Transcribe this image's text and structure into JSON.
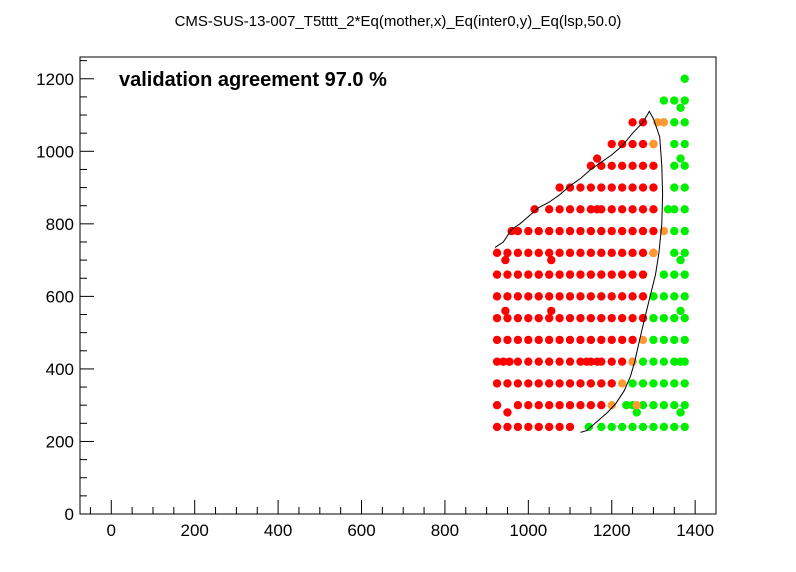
{
  "chart_data": {
    "type": "scatter",
    "title": "CMS-SUS-13-007_T5tttt_2*Eq(mother,x)_Eq(inter0,y)_Eq(lsp,50.0)",
    "annotation": "validation agreement 97.0 %",
    "xlabel": "",
    "ylabel": "",
    "xlim": [
      -75,
      1450
    ],
    "ylim": [
      0,
      1260
    ],
    "x_ticks": [
      0,
      200,
      400,
      600,
      800,
      1000,
      1200,
      1400
    ],
    "y_ticks": [
      0,
      200,
      400,
      600,
      800,
      1000,
      1200
    ],
    "grid": false,
    "legend": "none",
    "colors": {
      "excluded": "#ff0000",
      "allowed": "#00ee00",
      "disagreement": "#ff9933",
      "contour": "#000000"
    },
    "series": [
      {
        "color_key": "excluded",
        "points": [
          [
            925,
            240
          ],
          [
            950,
            240
          ],
          [
            975,
            240
          ],
          [
            1000,
            240
          ],
          [
            1025,
            240
          ],
          [
            1050,
            240
          ],
          [
            1075,
            240
          ],
          [
            1100,
            240
          ],
          [
            925,
            300
          ],
          [
            950,
            280
          ],
          [
            975,
            300
          ],
          [
            1000,
            300
          ],
          [
            1025,
            300
          ],
          [
            1050,
            300
          ],
          [
            1075,
            300
          ],
          [
            1100,
            300
          ],
          [
            1125,
            300
          ],
          [
            1150,
            300
          ],
          [
            1175,
            300
          ],
          [
            925,
            360
          ],
          [
            950,
            360
          ],
          [
            975,
            360
          ],
          [
            1000,
            360
          ],
          [
            1025,
            360
          ],
          [
            1050,
            360
          ],
          [
            1075,
            360
          ],
          [
            1100,
            360
          ],
          [
            1125,
            360
          ],
          [
            1150,
            360
          ],
          [
            1175,
            360
          ],
          [
            1200,
            360
          ],
          [
            925,
            420
          ],
          [
            940,
            420
          ],
          [
            955,
            420
          ],
          [
            975,
            420
          ],
          [
            1000,
            420
          ],
          [
            1025,
            420
          ],
          [
            1050,
            420
          ],
          [
            1075,
            420
          ],
          [
            1100,
            420
          ],
          [
            1125,
            420
          ],
          [
            1140,
            420
          ],
          [
            1150,
            420
          ],
          [
            1165,
            420
          ],
          [
            1175,
            420
          ],
          [
            1200,
            420
          ],
          [
            1225,
            420
          ],
          [
            1250,
            420
          ],
          [
            925,
            480
          ],
          [
            950,
            480
          ],
          [
            975,
            480
          ],
          [
            1000,
            480
          ],
          [
            1025,
            480
          ],
          [
            1050,
            480
          ],
          [
            1075,
            480
          ],
          [
            1100,
            480
          ],
          [
            1125,
            480
          ],
          [
            1150,
            480
          ],
          [
            1175,
            480
          ],
          [
            1200,
            480
          ],
          [
            1225,
            480
          ],
          [
            1250,
            480
          ],
          [
            925,
            540
          ],
          [
            945,
            560
          ],
          [
            950,
            540
          ],
          [
            975,
            540
          ],
          [
            1000,
            540
          ],
          [
            1025,
            540
          ],
          [
            1050,
            540
          ],
          [
            1055,
            560
          ],
          [
            1075,
            540
          ],
          [
            1100,
            540
          ],
          [
            1125,
            540
          ],
          [
            1150,
            540
          ],
          [
            1175,
            540
          ],
          [
            1200,
            540
          ],
          [
            1225,
            540
          ],
          [
            1250,
            540
          ],
          [
            1275,
            540
          ],
          [
            925,
            600
          ],
          [
            950,
            600
          ],
          [
            975,
            600
          ],
          [
            1000,
            600
          ],
          [
            1025,
            600
          ],
          [
            1050,
            600
          ],
          [
            1075,
            600
          ],
          [
            1100,
            600
          ],
          [
            1125,
            600
          ],
          [
            1150,
            600
          ],
          [
            1175,
            600
          ],
          [
            1200,
            600
          ],
          [
            1225,
            600
          ],
          [
            1250,
            600
          ],
          [
            1275,
            600
          ],
          [
            925,
            660
          ],
          [
            950,
            660
          ],
          [
            975,
            660
          ],
          [
            1000,
            660
          ],
          [
            1025,
            660
          ],
          [
            1050,
            660
          ],
          [
            1075,
            660
          ],
          [
            1100,
            660
          ],
          [
            1125,
            660
          ],
          [
            1150,
            660
          ],
          [
            1175,
            660
          ],
          [
            1200,
            660
          ],
          [
            1225,
            660
          ],
          [
            1250,
            660
          ],
          [
            1275,
            660
          ],
          [
            925,
            720
          ],
          [
            945,
            700
          ],
          [
            950,
            720
          ],
          [
            975,
            720
          ],
          [
            1000,
            720
          ],
          [
            1025,
            720
          ],
          [
            1050,
            720
          ],
          [
            1055,
            700
          ],
          [
            1075,
            720
          ],
          [
            1100,
            720
          ],
          [
            1125,
            720
          ],
          [
            1150,
            720
          ],
          [
            1175,
            720
          ],
          [
            1200,
            720
          ],
          [
            1225,
            720
          ],
          [
            1250,
            720
          ],
          [
            1275,
            720
          ],
          [
            1300,
            720
          ],
          [
            960,
            780
          ],
          [
            975,
            780
          ],
          [
            1000,
            780
          ],
          [
            1025,
            780
          ],
          [
            1050,
            780
          ],
          [
            1075,
            780
          ],
          [
            1100,
            780
          ],
          [
            1125,
            780
          ],
          [
            1150,
            780
          ],
          [
            1175,
            780
          ],
          [
            1200,
            780
          ],
          [
            1225,
            780
          ],
          [
            1250,
            780
          ],
          [
            1275,
            780
          ],
          [
            1300,
            780
          ],
          [
            1015,
            840
          ],
          [
            1050,
            840
          ],
          [
            1075,
            840
          ],
          [
            1100,
            840
          ],
          [
            1125,
            840
          ],
          [
            1150,
            840
          ],
          [
            1165,
            840
          ],
          [
            1175,
            840
          ],
          [
            1200,
            840
          ],
          [
            1225,
            840
          ],
          [
            1250,
            840
          ],
          [
            1275,
            840
          ],
          [
            1300,
            840
          ],
          [
            1075,
            900
          ],
          [
            1100,
            900
          ],
          [
            1125,
            900
          ],
          [
            1150,
            900
          ],
          [
            1175,
            900
          ],
          [
            1200,
            900
          ],
          [
            1225,
            900
          ],
          [
            1250,
            900
          ],
          [
            1275,
            900
          ],
          [
            1300,
            900
          ],
          [
            1150,
            960
          ],
          [
            1175,
            960
          ],
          [
            1200,
            960
          ],
          [
            1225,
            960
          ],
          [
            1250,
            960
          ],
          [
            1275,
            960
          ],
          [
            1300,
            960
          ],
          [
            1165,
            980
          ],
          [
            1200,
            1020
          ],
          [
            1225,
            1020
          ],
          [
            1250,
            1020
          ],
          [
            1275,
            1020
          ],
          [
            1300,
            1020
          ],
          [
            1250,
            1080
          ],
          [
            1275,
            1080
          ]
        ]
      },
      {
        "color_key": "allowed",
        "points": [
          [
            1145,
            240
          ],
          [
            1175,
            240
          ],
          [
            1200,
            240
          ],
          [
            1225,
            240
          ],
          [
            1250,
            240
          ],
          [
            1275,
            240
          ],
          [
            1300,
            240
          ],
          [
            1325,
            240
          ],
          [
            1350,
            240
          ],
          [
            1375,
            240
          ],
          [
            1235,
            300
          ],
          [
            1250,
            300
          ],
          [
            1260,
            280
          ],
          [
            1275,
            300
          ],
          [
            1300,
            300
          ],
          [
            1325,
            300
          ],
          [
            1350,
            300
          ],
          [
            1365,
            280
          ],
          [
            1375,
            300
          ],
          [
            1250,
            360
          ],
          [
            1275,
            360
          ],
          [
            1300,
            360
          ],
          [
            1325,
            360
          ],
          [
            1350,
            360
          ],
          [
            1375,
            360
          ],
          [
            1275,
            420
          ],
          [
            1300,
            420
          ],
          [
            1325,
            420
          ],
          [
            1350,
            420
          ],
          [
            1365,
            420
          ],
          [
            1375,
            420
          ],
          [
            1300,
            480
          ],
          [
            1325,
            480
          ],
          [
            1350,
            480
          ],
          [
            1375,
            480
          ],
          [
            1300,
            540
          ],
          [
            1325,
            540
          ],
          [
            1350,
            540
          ],
          [
            1365,
            560
          ],
          [
            1375,
            540
          ],
          [
            1300,
            600
          ],
          [
            1325,
            600
          ],
          [
            1350,
            600
          ],
          [
            1375,
            600
          ],
          [
            1325,
            660
          ],
          [
            1350,
            660
          ],
          [
            1375,
            660
          ],
          [
            1350,
            720
          ],
          [
            1365,
            700
          ],
          [
            1375,
            720
          ],
          [
            1350,
            780
          ],
          [
            1375,
            780
          ],
          [
            1335,
            840
          ],
          [
            1350,
            840
          ],
          [
            1375,
            840
          ],
          [
            1350,
            900
          ],
          [
            1375,
            900
          ],
          [
            1350,
            960
          ],
          [
            1375,
            960
          ],
          [
            1350,
            1020
          ],
          [
            1375,
            1020
          ],
          [
            1325,
            1080
          ],
          [
            1350,
            1080
          ],
          [
            1375,
            1080
          ],
          [
            1365,
            1120
          ],
          [
            1325,
            1140
          ],
          [
            1350,
            1140
          ],
          [
            1375,
            1140
          ],
          [
            1375,
            1200
          ],
          [
            1365,
            980
          ]
        ]
      },
      {
        "color_key": "disagreement",
        "points": [
          [
            1200,
            300
          ],
          [
            1225,
            360
          ],
          [
            1260,
            300
          ],
          [
            1275,
            480
          ],
          [
            1250,
            420
          ],
          [
            1300,
            720
          ],
          [
            1325,
            780
          ],
          [
            1325,
            1080
          ],
          [
            1300,
            1020
          ],
          [
            1310,
            1080
          ]
        ]
      }
    ],
    "contour": [
      [
        920,
        735
      ],
      [
        940,
        750
      ],
      [
        960,
        785
      ],
      [
        980,
        800
      ],
      [
        1000,
        820
      ],
      [
        1025,
        845
      ],
      [
        1050,
        860
      ],
      [
        1075,
        880
      ],
      [
        1100,
        905
      ],
      [
        1125,
        925
      ],
      [
        1150,
        950
      ],
      [
        1175,
        970
      ],
      [
        1200,
        990
      ],
      [
        1225,
        1015
      ],
      [
        1250,
        1050
      ],
      [
        1275,
        1080
      ],
      [
        1290,
        1110
      ],
      [
        1300,
        1090
      ],
      [
        1315,
        1040
      ],
      [
        1320,
        960
      ],
      [
        1322,
        880
      ],
      [
        1320,
        800
      ],
      [
        1313,
        720
      ],
      [
        1305,
        660
      ],
      [
        1292,
        600
      ],
      [
        1275,
        520
      ],
      [
        1265,
        470
      ],
      [
        1255,
        420
      ],
      [
        1245,
        380
      ],
      [
        1230,
        340
      ],
      [
        1210,
        305
      ],
      [
        1190,
        280
      ],
      [
        1165,
        255
      ],
      [
        1140,
        230
      ],
      [
        1125,
        225
      ]
    ]
  }
}
